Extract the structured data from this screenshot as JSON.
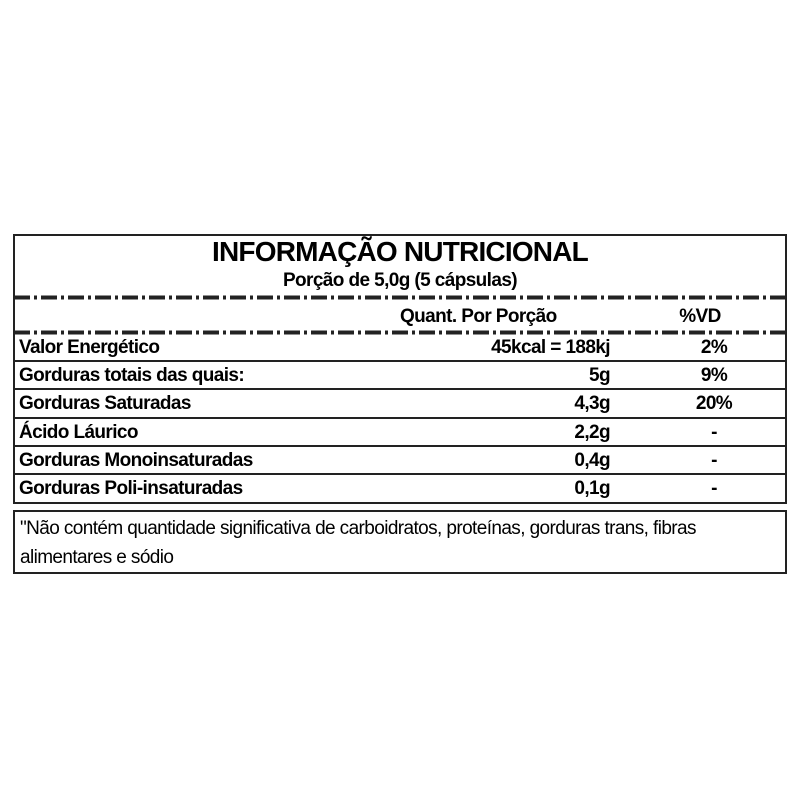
{
  "label": {
    "title": "INFORMAÇÃO NUTRICIONAL",
    "serving": "Porção de 5,0g (5 cápsulas)",
    "headers": {
      "quantity": "Quant. Por Porção",
      "dv": "%VD"
    },
    "rows": [
      {
        "name": "Valor Energético",
        "quantity": "45kcal = 188kj",
        "dv": "2%"
      },
      {
        "name": "Gorduras totais das quais:",
        "quantity": "5g",
        "dv": "9%"
      },
      {
        "name": "Gorduras Saturadas",
        "quantity": "4,3g",
        "dv": "20%"
      },
      {
        "name": "Ácido Láurico",
        "quantity": "2,2g",
        "dv": "-"
      },
      {
        "name": "Gorduras Monoinsaturadas",
        "quantity": "0,4g",
        "dv": "-"
      },
      {
        "name": "Gorduras Poli-insaturadas",
        "quantity": "0,1g",
        "dv": "-"
      }
    ],
    "footnote": "\"Não contém quantidade significativa de carboidratos, proteínas, gorduras trans, fibras alimentares e sódio"
  }
}
